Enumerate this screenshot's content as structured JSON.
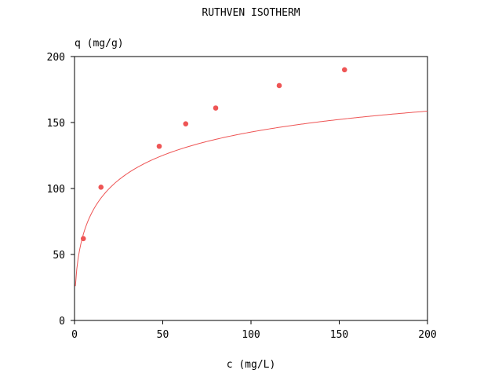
{
  "chart_data": {
    "type": "scatter",
    "title": "RUTHVEN ISOTHERM",
    "xlabel": "c (mg/L)",
    "ylabel": "q (mg/g)",
    "xlim": [
      0,
      200
    ],
    "ylim": [
      0,
      200
    ],
    "xticks": [
      0,
      50,
      100,
      150,
      200
    ],
    "yticks": [
      0,
      50,
      100,
      150,
      200
    ],
    "grid": false,
    "series": [
      {
        "type": "scatter",
        "color": "#ee5555",
        "points": [
          {
            "x": 5,
            "y": 62
          },
          {
            "x": 15,
            "y": 101
          },
          {
            "x": 48,
            "y": 132
          },
          {
            "x": 63,
            "y": 149
          },
          {
            "x": 80,
            "y": 161
          },
          {
            "x": 116,
            "y": 178
          },
          {
            "x": 153,
            "y": 190
          }
        ]
      },
      {
        "type": "line",
        "color": "#ee5555",
        "fit_model": "ruthven",
        "params": {
          "qm": 216.7,
          "K": 0.0373
        },
        "x_range": [
          0.5,
          200
        ]
      }
    ]
  }
}
